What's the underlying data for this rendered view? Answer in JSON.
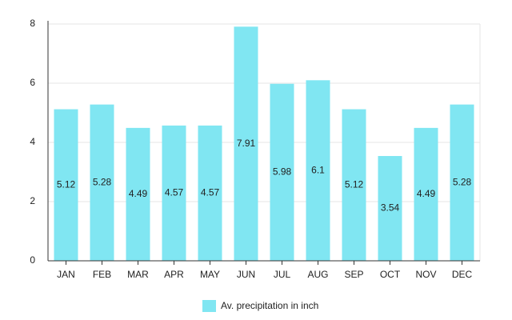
{
  "chart_data": {
    "type": "bar",
    "categories": [
      "JAN",
      "FEB",
      "MAR",
      "APR",
      "MAY",
      "JUN",
      "JUL",
      "AUG",
      "SEP",
      "OCT",
      "NOV",
      "DEC"
    ],
    "series": [
      {
        "name": "Av. precipitation in inch",
        "color": "#80e6f2",
        "values": [
          5.12,
          5.28,
          4.49,
          4.57,
          4.57,
          7.91,
          5.98,
          6.1,
          5.12,
          3.54,
          4.49,
          5.28
        ]
      }
    ],
    "ylim": [
      0,
      8
    ],
    "yticks": [
      0,
      2,
      4,
      6,
      8
    ],
    "grid": true,
    "legend": "bottom"
  }
}
